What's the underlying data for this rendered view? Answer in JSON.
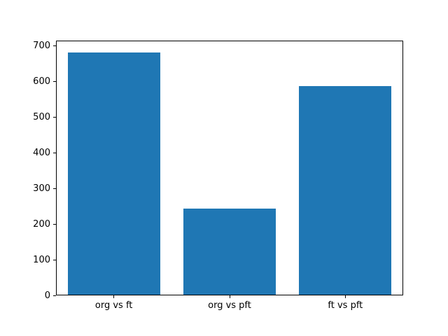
{
  "chart_data": {
    "type": "bar",
    "title": "",
    "xlabel": "",
    "ylabel": "",
    "categories": [
      "org vs ft",
      "org vs pft",
      "ft vs pft"
    ],
    "values": [
      680,
      243,
      587
    ],
    "yticks": [
      0,
      100,
      200,
      300,
      400,
      500,
      600,
      700
    ],
    "ylim": [
      0,
      714
    ],
    "bar_color": "#1f77b4",
    "spine_color": "#000000",
    "background_color": "#ffffff",
    "grid": false,
    "legend": null,
    "bar_width_fraction": 0.8
  }
}
